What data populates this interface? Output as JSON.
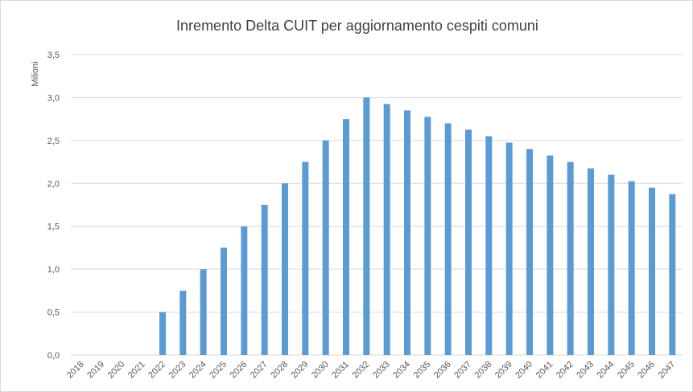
{
  "chart_data": {
    "type": "bar",
    "title": "Inremento Delta CUIT per aggiornamento cespiti comuni",
    "y_label": "Milioni",
    "categories": [
      "2018",
      "2019",
      "2020",
      "2021",
      "2022",
      "2023",
      "2024",
      "2025",
      "2026",
      "2027",
      "2028",
      "2029",
      "2030",
      "2031",
      "2032",
      "2033",
      "2034",
      "2035",
      "2036",
      "2037",
      "2038",
      "2039",
      "2040",
      "2041",
      "2042",
      "2043",
      "2044",
      "2045",
      "2046",
      "2047"
    ],
    "values": [
      0,
      0,
      0,
      0,
      0.5,
      0.75,
      1.0,
      1.25,
      1.5,
      1.75,
      2.0,
      2.25,
      2.5,
      2.75,
      3.0,
      2.925,
      2.85,
      2.775,
      2.7,
      2.625,
      2.55,
      2.475,
      2.4,
      2.325,
      2.25,
      2.175,
      2.1,
      2.025,
      1.95,
      1.875
    ],
    "color": "#5b9bd5",
    "ylim": [
      0,
      3.5
    ],
    "yticks": [
      {
        "value": 0,
        "label": "0,0"
      },
      {
        "value": 0.5,
        "label": "0,5"
      },
      {
        "value": 1,
        "label": "1,0"
      },
      {
        "value": 1.5,
        "label": "1,5"
      },
      {
        "value": 2,
        "label": "2,0"
      },
      {
        "value": 2.5,
        "label": "2,5"
      },
      {
        "value": 3,
        "label": "3,0"
      },
      {
        "value": 3.5,
        "label": "3,5"
      }
    ],
    "grid": true
  }
}
